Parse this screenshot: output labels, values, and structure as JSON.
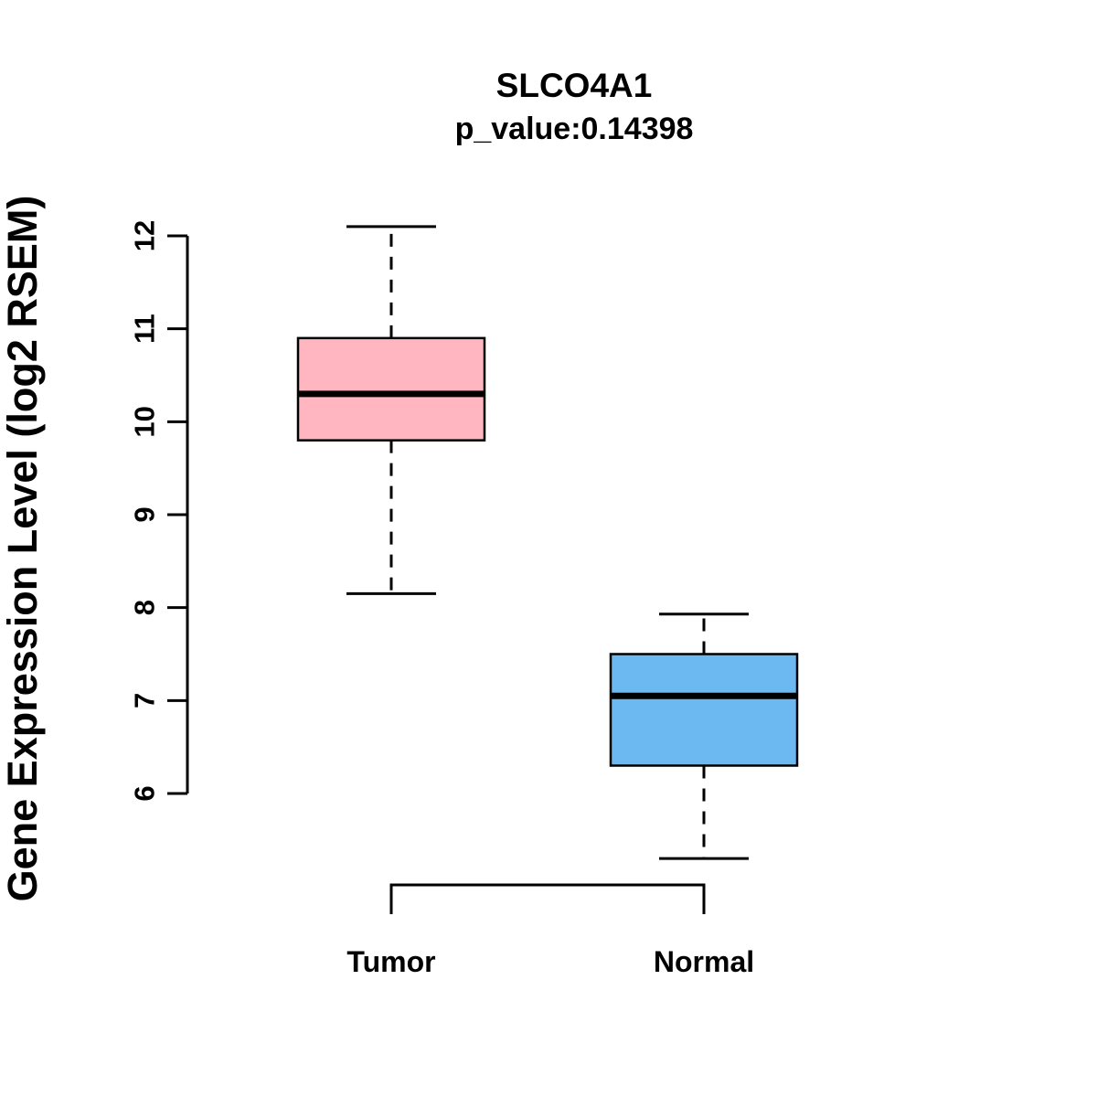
{
  "chart_data": {
    "type": "boxplot",
    "title": "SLCO4A1",
    "subtitle": "p_value:0.14398",
    "ylabel": "Gene Expression Level (log2 RSEM)",
    "xlabel": "",
    "y_ticks": [
      6,
      7,
      8,
      9,
      10,
      11,
      12
    ],
    "ylim": [
      5.2,
      12.2
    ],
    "grid": false,
    "legend": "none",
    "categories": [
      "Tumor",
      "Normal"
    ],
    "groups": [
      {
        "name": "Tumor",
        "color": "#FFB6C1",
        "lower_whisker": 8.15,
        "q1": 9.8,
        "median": 10.3,
        "q3": 10.9,
        "upper_whisker": 12.1
      },
      {
        "name": "Normal",
        "color": "#6CB8F0",
        "lower_whisker": 5.3,
        "q1": 6.3,
        "median": 7.05,
        "q3": 7.5,
        "upper_whisker": 7.93
      }
    ],
    "box_border_color": "#000000",
    "median_color": "#000000"
  }
}
